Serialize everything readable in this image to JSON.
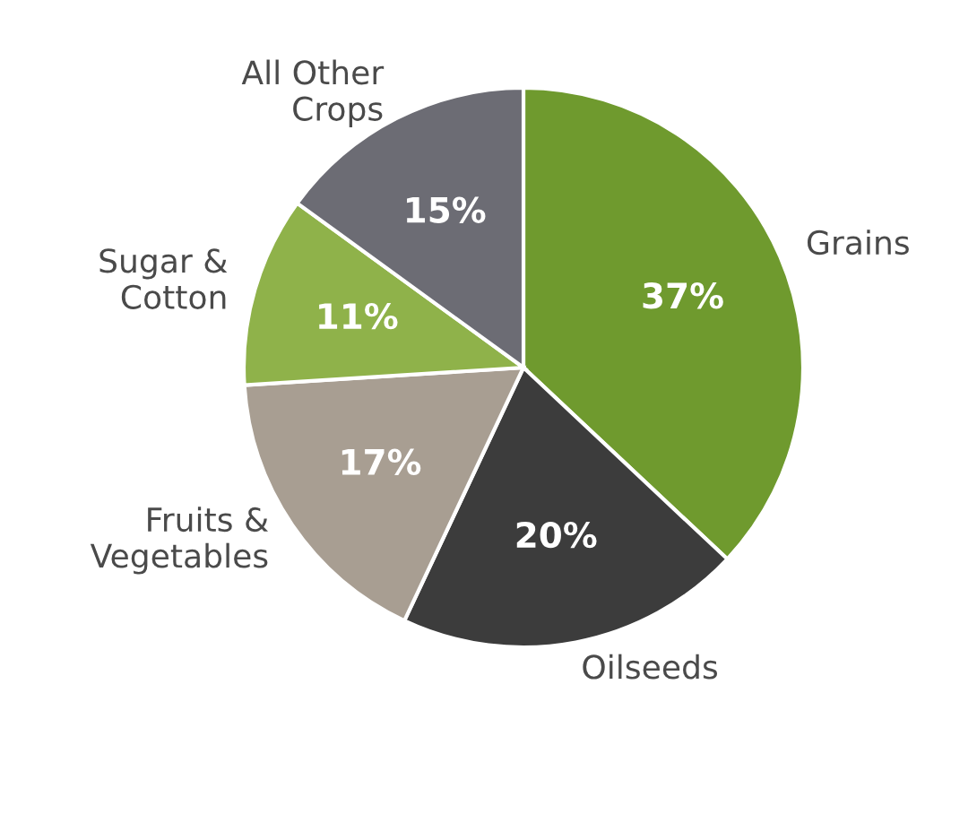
{
  "chart_data": {
    "type": "pie",
    "categories": [
      "Grains",
      "Oilseeds",
      "Fruits &\nVegetables",
      "Sugar &\nCotton",
      "All Other\nCrops"
    ],
    "values": [
      37,
      20,
      17,
      11,
      15
    ],
    "value_labels": [
      "37%",
      "20%",
      "17%",
      "11%",
      "15%"
    ],
    "colors": [
      "#6f9a2e",
      "#3c3c3c",
      "#a89e92",
      "#8fb24a",
      "#6c6c74"
    ],
    "legend": false
  }
}
